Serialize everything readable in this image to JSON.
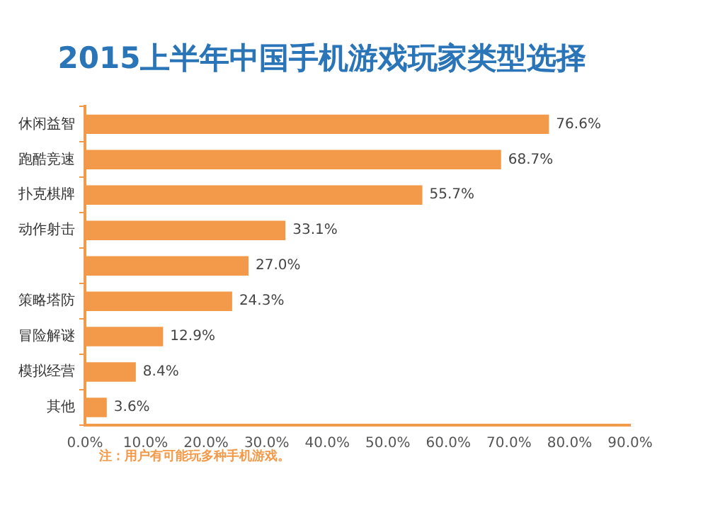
{
  "chart_data": {
    "type": "bar",
    "orientation": "horizontal",
    "title": "2015上半年中国手机游戏玩家类型选择",
    "categories": [
      "休闲益智",
      "跑酷竞速",
      "扑克棋牌",
      "动作射击",
      null,
      "策略塔防",
      "冒险解谜",
      "模拟经营",
      "其他"
    ],
    "values": [
      76.6,
      68.7,
      55.7,
      33.1,
      27.0,
      24.3,
      12.9,
      8.4,
      3.6
    ],
    "value_labels": [
      "76.6%",
      "68.7%",
      "55.7%",
      "33.1%",
      "27.0%",
      "24.3%",
      "12.9%",
      "8.4%",
      "3.6%"
    ],
    "color": "#f39a4a",
    "xlim": [
      0,
      90
    ],
    "xticks": [
      {
        "value": 0,
        "label": "0.0%"
      },
      {
        "value": 10,
        "label": "10.0%"
      },
      {
        "value": 20,
        "label": "20.0%"
      },
      {
        "value": 30,
        "label": "30.0%"
      },
      {
        "value": 40,
        "label": "40.0%"
      },
      {
        "value": 50,
        "label": "50.0%"
      },
      {
        "value": 60,
        "label": "60.0%"
      },
      {
        "value": 70,
        "label": "70.0%"
      },
      {
        "value": 80,
        "label": "80.0%"
      },
      {
        "value": 90,
        "label": "90.0%"
      }
    ],
    "grid": false,
    "annotations": [
      "注：用户有可能玩多种手机游戏。"
    ]
  }
}
